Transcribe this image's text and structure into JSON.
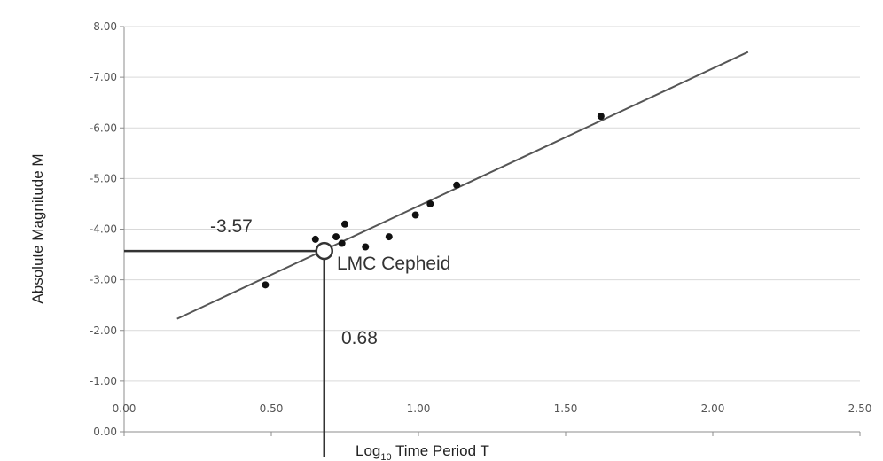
{
  "chart_data": {
    "type": "scatter",
    "title": "",
    "xlabel": "Log",
    "xlabel_sub": "10",
    "xlabel_rest": " Time Period T",
    "ylabel": "Absolute Magnitude M",
    "xlim": [
      0,
      2.5
    ],
    "ylim": [
      0,
      -8
    ],
    "y_reversed": true,
    "grid": "horizontal",
    "x_ticks": [
      0,
      0.5,
      1,
      1.5,
      2,
      2.5
    ],
    "x_tick_labels": [
      "0.00",
      "0.50",
      "1.00",
      "1.50",
      "2.00",
      "2.50"
    ],
    "y_ticks": [
      0,
      -1,
      -2,
      -3,
      -4,
      -5,
      -6,
      -7,
      -8
    ],
    "y_tick_labels": [
      "0.00",
      "-1.00",
      "-2.00",
      "-3.00",
      "-4.00",
      "-5.00",
      "-6.00",
      "-7.00",
      "-8.00"
    ],
    "points": [
      {
        "x": 0.48,
        "y": -2.9
      },
      {
        "x": 0.65,
        "y": -3.8
      },
      {
        "x": 0.72,
        "y": -3.85
      },
      {
        "x": 0.74,
        "y": -3.72
      },
      {
        "x": 0.75,
        "y": -4.1
      },
      {
        "x": 0.82,
        "y": -3.65
      },
      {
        "x": 0.9,
        "y": -3.85
      },
      {
        "x": 0.99,
        "y": -4.28
      },
      {
        "x": 1.04,
        "y": -4.5
      },
      {
        "x": 1.13,
        "y": -4.87
      },
      {
        "x": 1.62,
        "y": -6.23
      }
    ],
    "trendline": {
      "x": [
        0.18,
        2.12
      ],
      "y": [
        -2.23,
        -7.5
      ]
    },
    "highlight": {
      "x": 0.68,
      "y": -3.57,
      "label": "LMC Cepheid"
    },
    "annotations": {
      "y_value": "-3.57",
      "x_value": "0.68"
    }
  }
}
